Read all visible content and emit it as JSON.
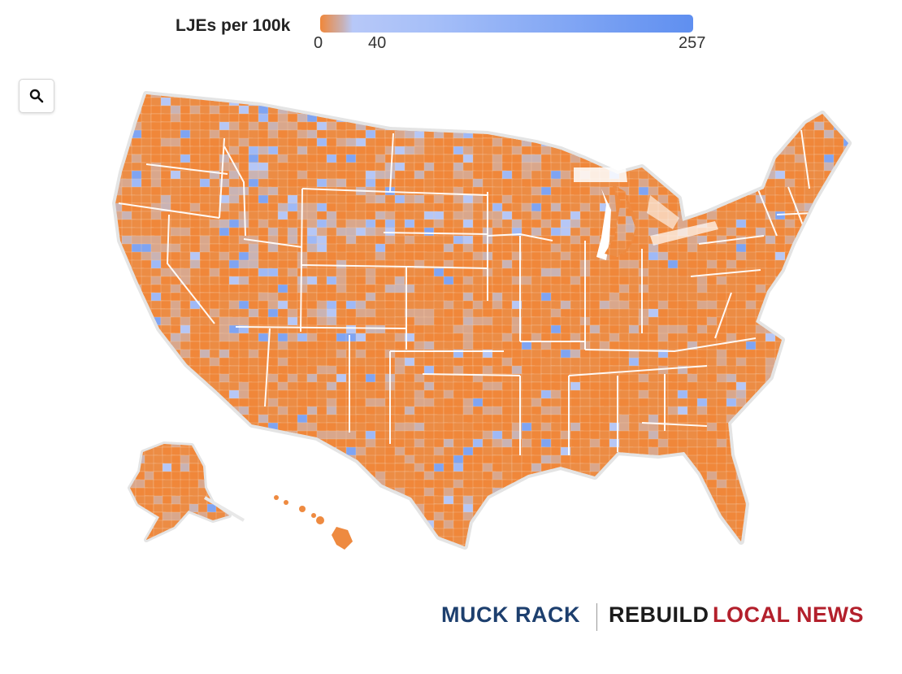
{
  "legend": {
    "title": "LJEs per 100k",
    "ticks": [
      "0",
      "40",
      "257"
    ],
    "values": [
      0,
      40,
      257
    ],
    "colors": {
      "low": "#f0873a",
      "mid": "#b7c8f8",
      "high": "#5f8ff0"
    }
  },
  "controls": {
    "zoom_icon": "search-icon"
  },
  "map": {
    "type": "choropleth",
    "region": "United States counties",
    "dominant_color": "#f0873a",
    "palette": [
      "#f0873a",
      "#ec8c44",
      "#d9a78c",
      "#c9b3b4",
      "#b6c7f6",
      "#9fb9f6",
      "#7fa4f2"
    ]
  },
  "branding": {
    "muck_rack": "MUCK RACK",
    "rebuild": "REBUILD",
    "local_news": "LOCAL NEWS"
  }
}
